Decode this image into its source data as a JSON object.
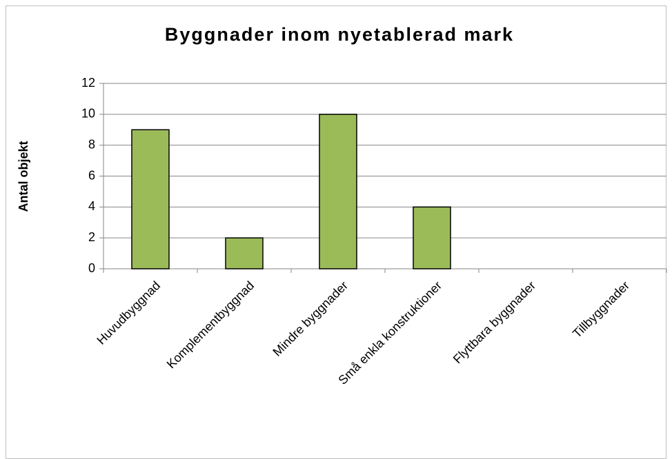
{
  "chart_data": {
    "type": "bar",
    "title": "Byggnader inom nyetablerad mark",
    "y_label": "Antal objekt",
    "categories": [
      "Huvudbyggnad",
      "Komplementbyggnad",
      "Mindre byggnader",
      "Små enkla konstruktioner",
      "Flyttbara byggnader",
      "Tillbyggnader"
    ],
    "values": [
      9,
      2,
      10,
      4,
      0,
      0
    ],
    "color": "#9bbb59",
    "ylim": [
      0,
      12
    ],
    "yticks": [
      0,
      2,
      4,
      6,
      8,
      10,
      12
    ],
    "grid": true
  }
}
